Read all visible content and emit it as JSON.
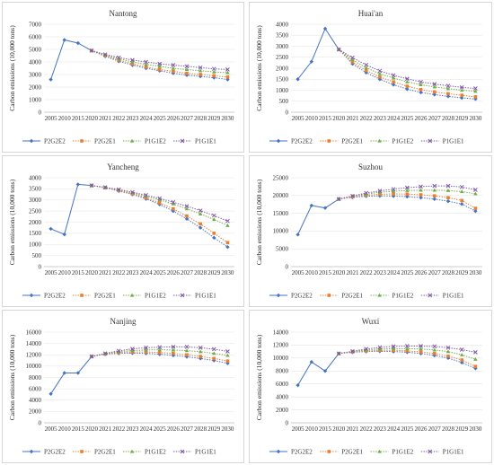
{
  "x_tick_labels": [
    "2005",
    "2010",
    "2015",
    "2020",
    "2021",
    "2022",
    "2023",
    "2024",
    "2025",
    "2026",
    "2027",
    "2028",
    "2029",
    "2030"
  ],
  "series_styles": [
    {
      "name": "P2G2E2",
      "color": "#4472c4",
      "marker": "diamond"
    },
    {
      "name": "P2G2E1",
      "color": "#ed7d31",
      "marker": "square"
    },
    {
      "name": "P1G1E2",
      "color": "#70ad47",
      "marker": "triangle"
    },
    {
      "name": "P1G1E1",
      "color": "#7e57a6",
      "marker": "x"
    }
  ],
  "chart_data": [
    {
      "type": "line",
      "title": "Nantong",
      "ylabel": "Carbon emissions (10,000 tons)",
      "ylim": [
        0,
        7000
      ],
      "yticks": [
        0,
        1000,
        2000,
        3000,
        4000,
        5000,
        6000,
        7000
      ],
      "history": {
        "x": [
          "2005",
          "2010",
          "2015",
          "2020"
        ],
        "values": [
          2600,
          5750,
          5500,
          4900
        ]
      },
      "series": [
        {
          "name": "P2G2E2",
          "values": [
            4900,
            4450,
            4050,
            3750,
            3500,
            3300,
            3100,
            2950,
            2850,
            2750,
            2600
          ]
        },
        {
          "name": "P2G2E1",
          "values": [
            4900,
            4500,
            4150,
            3850,
            3600,
            3400,
            3250,
            3100,
            3000,
            2900,
            2800
          ]
        },
        {
          "name": "P1G1E2",
          "values": [
            4900,
            4550,
            4250,
            4000,
            3800,
            3650,
            3500,
            3400,
            3300,
            3200,
            3150
          ]
        },
        {
          "name": "P1G1E1",
          "values": [
            4900,
            4600,
            4350,
            4150,
            4000,
            3850,
            3750,
            3650,
            3550,
            3450,
            3400
          ]
        }
      ]
    },
    {
      "type": "line",
      "title": "Huai'an",
      "ylabel": "Carbon emissions (10,000 tons)",
      "ylim": [
        0,
        4000
      ],
      "yticks": [
        0,
        500,
        1000,
        1500,
        2000,
        2500,
        3000,
        3500,
        4000
      ],
      "history": {
        "x": [
          "2005",
          "2010",
          "2015",
          "2020"
        ],
        "values": [
          1500,
          2300,
          3800,
          2850
        ]
      },
      "series": [
        {
          "name": "P2G2E2",
          "values": [
            2850,
            2200,
            1800,
            1500,
            1250,
            1050,
            900,
            800,
            720,
            650,
            600
          ]
        },
        {
          "name": "P2G2E1",
          "values": [
            2850,
            2280,
            1900,
            1600,
            1380,
            1180,
            1030,
            920,
            840,
            770,
            700
          ]
        },
        {
          "name": "P1G1E2",
          "values": [
            2850,
            2380,
            2020,
            1750,
            1550,
            1380,
            1250,
            1150,
            1070,
            1000,
            950
          ]
        },
        {
          "name": "P1G1E1",
          "values": [
            2850,
            2480,
            2150,
            1880,
            1680,
            1520,
            1380,
            1280,
            1200,
            1130,
            1080
          ]
        }
      ]
    },
    {
      "type": "line",
      "title": "Yancheng",
      "ylabel": "Carbon emissions (10,000 tons)",
      "ylim": [
        0,
        4000
      ],
      "yticks": [
        0,
        500,
        1000,
        1500,
        2000,
        2500,
        3000,
        3500,
        4000
      ],
      "history": {
        "x": [
          "2005",
          "2010",
          "2015",
          "2020"
        ],
        "values": [
          1700,
          1450,
          3700,
          3650
        ]
      },
      "series": [
        {
          "name": "P2G2E2",
          "values": [
            3650,
            3550,
            3400,
            3250,
            3050,
            2800,
            2500,
            2150,
            1750,
            1300,
            880
          ]
        },
        {
          "name": "P2G2E1",
          "values": [
            3650,
            3550,
            3420,
            3280,
            3100,
            2870,
            2600,
            2280,
            1920,
            1500,
            1080
          ]
        },
        {
          "name": "P1G1E2",
          "values": [
            3650,
            3560,
            3450,
            3320,
            3170,
            3000,
            2820,
            2600,
            2370,
            2120,
            1850
          ]
        },
        {
          "name": "P1G1E1",
          "values": [
            3650,
            3570,
            3470,
            3350,
            3220,
            3070,
            2900,
            2720,
            2520,
            2300,
            2050
          ]
        }
      ]
    },
    {
      "type": "line",
      "title": "Suzhou",
      "ylabel": "Carbon emissions (10,000 tons)",
      "ylim": [
        0,
        25000
      ],
      "yticks": [
        0,
        5000,
        10000,
        15000,
        20000,
        25000
      ],
      "history": {
        "x": [
          "2005",
          "2010",
          "2015",
          "2020"
        ],
        "values": [
          9000,
          17200,
          16500,
          19000
        ]
      },
      "series": [
        {
          "name": "P2G2E2",
          "values": [
            19000,
            19500,
            19800,
            19900,
            19850,
            19700,
            19400,
            19000,
            18400,
            17600,
            15600
          ]
        },
        {
          "name": "P2G2E1",
          "values": [
            19000,
            19650,
            20100,
            20350,
            20450,
            20400,
            20200,
            19900,
            19400,
            18600,
            16400
          ]
        },
        {
          "name": "P1G1E2",
          "values": [
            19000,
            19800,
            20400,
            20900,
            21200,
            21400,
            21500,
            21500,
            21400,
            21100,
            20500
          ]
        },
        {
          "name": "P1G1E1",
          "values": [
            19000,
            19900,
            20700,
            21300,
            21800,
            22200,
            22500,
            22700,
            22700,
            22400,
            21600
          ]
        }
      ]
    },
    {
      "type": "line",
      "title": "Nanjing",
      "ylabel": "Carbon emissions (10,000 tons)",
      "ylim": [
        0,
        16000
      ],
      "yticks": [
        0,
        2000,
        4000,
        6000,
        8000,
        10000,
        12000,
        14000,
        16000
      ],
      "history": {
        "x": [
          "2005",
          "2010",
          "2015",
          "2020"
        ],
        "values": [
          5100,
          8800,
          8800,
          11700
        ]
      },
      "series": [
        {
          "name": "P2G2E2",
          "values": [
            11700,
            12100,
            12250,
            12300,
            12250,
            12100,
            11900,
            11650,
            11350,
            11000,
            10500
          ]
        },
        {
          "name": "P2G2E1",
          "values": [
            11700,
            12150,
            12400,
            12500,
            12500,
            12400,
            12250,
            12000,
            11700,
            11350,
            10900
          ]
        },
        {
          "name": "P1G1E2",
          "values": [
            11700,
            12200,
            12550,
            12750,
            12850,
            12900,
            12850,
            12750,
            12550,
            12250,
            11900
          ]
        },
        {
          "name": "P1G1E1",
          "values": [
            11700,
            12250,
            12700,
            13050,
            13250,
            13350,
            13400,
            13400,
            13250,
            13000,
            12600
          ]
        }
      ]
    },
    {
      "type": "line",
      "title": "Wuxi",
      "ylabel": "Carbon emissions (10,000 tons)",
      "ylim": [
        0,
        14000
      ],
      "yticks": [
        0,
        2000,
        4000,
        6000,
        8000,
        10000,
        12000,
        14000
      ],
      "history": {
        "x": [
          "2005",
          "2010",
          "2015",
          "2020"
        ],
        "values": [
          5800,
          9400,
          8000,
          10700
        ]
      },
      "series": [
        {
          "name": "P2G2E2",
          "values": [
            10700,
            10900,
            11000,
            11050,
            11000,
            10900,
            10700,
            10400,
            10000,
            9300,
            8400
          ]
        },
        {
          "name": "P2G2E1",
          "values": [
            10700,
            10950,
            11100,
            11200,
            11200,
            11100,
            10950,
            10700,
            10300,
            9700,
            8700
          ]
        },
        {
          "name": "P1G1E2",
          "values": [
            10700,
            11000,
            11250,
            11400,
            11450,
            11450,
            11400,
            11250,
            11000,
            10500,
            9800
          ]
        },
        {
          "name": "P1G1E1",
          "values": [
            10700,
            11050,
            11400,
            11650,
            11800,
            11850,
            11850,
            11800,
            11600,
            11300,
            10900
          ]
        }
      ]
    }
  ]
}
